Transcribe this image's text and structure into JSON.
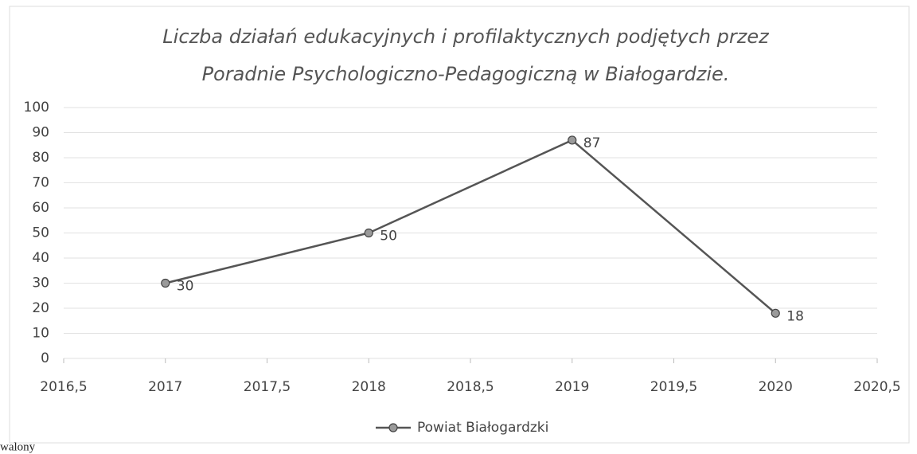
{
  "chart_data": {
    "type": "line",
    "title": [
      "Liczba działań edukacyjnych i profilaktycznych podjętych przez",
      "Poradnie Psychologiczno-Pedagogiczną w Białogardzie."
    ],
    "x": [
      2017,
      2018,
      2019,
      2020
    ],
    "series": [
      {
        "name": "Powiat Białogardzki",
        "color": "#555555",
        "marker_color": "#9a9a9a",
        "values": [
          30,
          50,
          87,
          18
        ]
      }
    ],
    "xlim": [
      2016.5,
      2020.5
    ],
    "xticks": [
      {
        "value": 2016.5,
        "label": "2016,5"
      },
      2017,
      {
        "value": 2017.5,
        "label": "2017,5"
      },
      2018,
      {
        "value": 2018.5,
        "label": "2018,5"
      },
      2019,
      {
        "value": 2019.5,
        "label": "2019,5"
      },
      2020,
      {
        "value": 2020.5,
        "label": "2020,5"
      }
    ],
    "ylim": [
      0,
      100
    ],
    "yticks": [
      0,
      10,
      20,
      30,
      40,
      50,
      60,
      70,
      80,
      90,
      100
    ],
    "grid": true,
    "legend": "bottom"
  },
  "fragment": "walony"
}
